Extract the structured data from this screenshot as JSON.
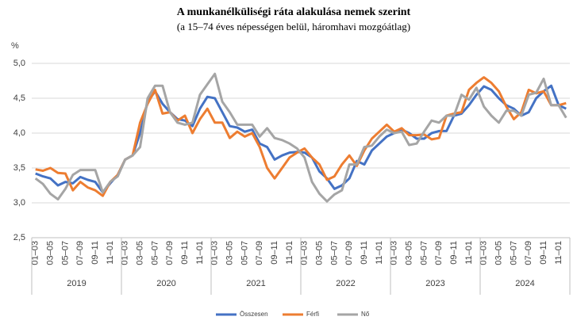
{
  "chart_data": {
    "type": "line",
    "title": "A munkanélküliségi  ráta alakulása nemek szerint",
    "subtitle": "(a 15–74 éves népességen belül, háromhavi mozgóátlag)",
    "y_label": "%",
    "categories": [
      "01–03",
      null,
      "03–05",
      null,
      "05–07",
      null,
      "07–09",
      null,
      "09–11",
      null,
      "11–01",
      null,
      "01–03",
      null,
      "03–05",
      null,
      "05–07",
      null,
      "07–09",
      null,
      "09–11",
      null,
      "11–01",
      null,
      "01–03",
      null,
      "03–05",
      null,
      "05–07",
      null,
      "07–09",
      null,
      "09–11",
      null,
      "11–01",
      null,
      "01–03",
      null,
      "03–05",
      null,
      "05–07",
      null,
      "07–09",
      null,
      "09–11",
      null,
      "11–01",
      null,
      "01–03",
      null,
      "03–05",
      null,
      "05–07",
      null,
      "07–09",
      null,
      "09–11",
      null,
      "11–01",
      null,
      "01–03",
      null,
      "03–05",
      null,
      "05–07",
      null,
      "07–09",
      null,
      "09–11",
      null,
      "11–01",
      null
    ],
    "years": [
      "2019",
      "2020",
      "2021",
      "2022",
      "2023",
      "2024"
    ],
    "series": [
      {
        "name": "Összesen",
        "color": "#4472c4",
        "values": [
          3.42,
          3.38,
          3.35,
          3.25,
          3.3,
          3.28,
          3.37,
          3.33,
          3.3,
          3.15,
          3.28,
          3.4,
          3.62,
          3.68,
          4.0,
          4.45,
          4.6,
          4.42,
          4.3,
          4.2,
          4.18,
          4.1,
          4.35,
          4.52,
          4.5,
          4.3,
          4.1,
          4.08,
          4.02,
          4.05,
          3.85,
          3.8,
          3.62,
          3.68,
          3.72,
          3.73,
          3.72,
          3.65,
          3.45,
          3.35,
          3.2,
          3.25,
          3.35,
          3.6,
          3.55,
          3.75,
          3.85,
          3.95,
          4.0,
          4.05,
          4.0,
          3.92,
          3.92,
          4.0,
          4.03,
          4.03,
          4.25,
          4.28,
          4.4,
          4.55,
          4.67,
          4.62,
          4.5,
          4.4,
          4.35,
          4.25,
          4.3,
          4.5,
          4.6,
          4.68,
          4.4,
          4.35
        ]
      },
      {
        "name": "Férfi",
        "color": "#ed7d31",
        "values": [
          3.48,
          3.46,
          3.5,
          3.43,
          3.42,
          3.18,
          3.3,
          3.22,
          3.18,
          3.1,
          3.3,
          3.4,
          3.62,
          3.68,
          4.15,
          4.42,
          4.62,
          4.28,
          4.3,
          4.18,
          4.25,
          4.0,
          4.2,
          4.35,
          4.15,
          4.15,
          3.93,
          4.02,
          3.95,
          4.0,
          3.8,
          3.5,
          3.35,
          3.5,
          3.65,
          3.72,
          3.78,
          3.65,
          3.55,
          3.33,
          3.38,
          3.55,
          3.68,
          3.53,
          3.75,
          3.92,
          4.02,
          4.12,
          4.02,
          4.07,
          3.97,
          3.97,
          3.98,
          3.91,
          3.93,
          4.25,
          4.28,
          4.3,
          4.62,
          4.72,
          4.8,
          4.72,
          4.6,
          4.38,
          4.2,
          4.3,
          4.62,
          4.57,
          4.6,
          4.4,
          4.4,
          4.43
        ]
      },
      {
        "name": "Nő",
        "color": "#a5a5a5",
        "values": [
          3.35,
          3.27,
          3.13,
          3.05,
          3.2,
          3.4,
          3.47,
          3.47,
          3.47,
          3.15,
          3.3,
          3.38,
          3.62,
          3.68,
          3.8,
          4.5,
          4.68,
          4.68,
          4.3,
          4.15,
          4.12,
          4.15,
          4.55,
          4.7,
          4.85,
          4.45,
          4.3,
          4.12,
          4.12,
          4.12,
          3.95,
          4.07,
          3.93,
          3.9,
          3.85,
          3.78,
          3.65,
          3.3,
          3.13,
          3.02,
          3.12,
          3.18,
          3.55,
          3.55,
          3.8,
          3.82,
          3.95,
          4.05,
          4.0,
          4.02,
          3.83,
          3.85,
          4.02,
          4.18,
          4.15,
          4.25,
          4.25,
          4.55,
          4.48,
          4.65,
          4.38,
          4.25,
          4.15,
          4.32,
          4.32,
          4.25,
          4.55,
          4.58,
          4.78,
          4.4,
          4.4,
          4.22
        ]
      }
    ],
    "ylim": [
      2.5,
      5.0
    ],
    "yticks": [
      {
        "value": 2.5,
        "label": "2,5"
      },
      {
        "value": 3.0,
        "label": "3,0"
      },
      {
        "value": 3.5,
        "label": "3,5"
      },
      {
        "value": 4.0,
        "label": "4,0"
      },
      {
        "value": 4.5,
        "label": "4,5"
      },
      {
        "value": 5.0,
        "label": "5,0"
      }
    ],
    "grid": true,
    "legend": "bottom"
  }
}
